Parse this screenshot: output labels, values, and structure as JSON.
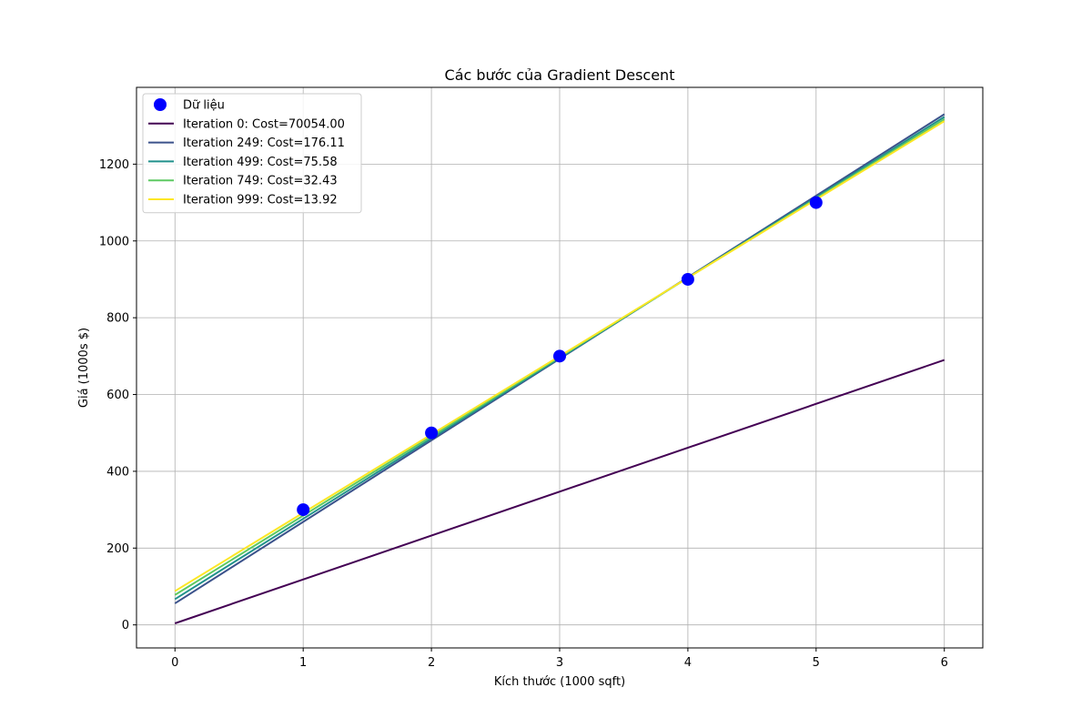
{
  "chart_data": {
    "type": "line",
    "title": "Các bước của Gradient Descent",
    "xlabel": "Kích thước (1000 sqft)",
    "ylabel": "Giá (1000s $)",
    "xlim": [
      -0.3,
      6.3
    ],
    "ylim": [
      -60,
      1400
    ],
    "xticks": [
      0,
      1,
      2,
      3,
      4,
      5,
      6
    ],
    "yticks": [
      0,
      200,
      400,
      600,
      800,
      1000,
      1200
    ],
    "grid": true,
    "legend_position": "upper-left",
    "scatter": {
      "name": "Dữ liệu",
      "color": "#0000ff",
      "x": [
        1,
        2,
        3,
        4,
        5
      ],
      "y": [
        300,
        500,
        700,
        900,
        1100
      ]
    },
    "series": [
      {
        "name": "Iteration 0: Cost=70054.00",
        "color": "#440154",
        "x": [
          0,
          6
        ],
        "y": [
          4,
          690
        ]
      },
      {
        "name": "Iteration 249: Cost=176.11",
        "color": "#3b528b",
        "x": [
          0,
          6
        ],
        "y": [
          56,
          1330
        ]
      },
      {
        "name": "Iteration 499: Cost=75.58",
        "color": "#21918c",
        "x": [
          0,
          6
        ],
        "y": [
          67,
          1323
        ]
      },
      {
        "name": "Iteration 749: Cost=32.43",
        "color": "#5ec962",
        "x": [
          0,
          6
        ],
        "y": [
          78,
          1317
        ]
      },
      {
        "name": "Iteration 999: Cost=13.92",
        "color": "#fde725",
        "x": [
          0,
          6
        ],
        "y": [
          88,
          1312
        ]
      }
    ]
  }
}
